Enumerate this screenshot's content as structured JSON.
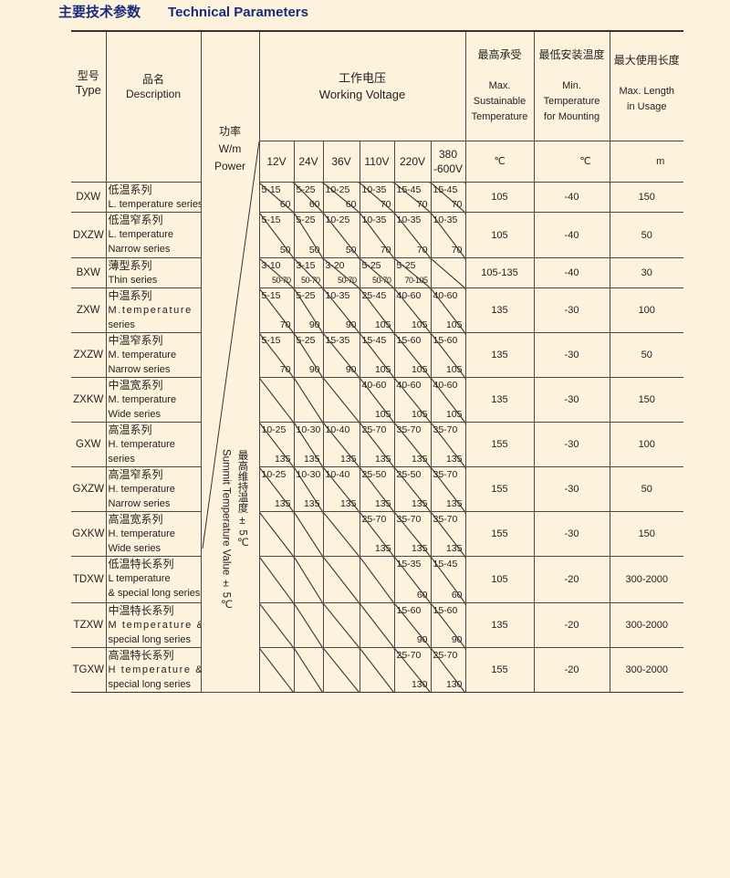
{
  "title": {
    "cn": "主要技术参数",
    "en": "Technical Parameters"
  },
  "header": {
    "type_cn": "型号",
    "type_en": "Type",
    "desc_cn": "品名",
    "desc_en": "Description",
    "power_cn": "功率",
    "power_unit": "W/m",
    "power_en": "Power",
    "voltage_cn": "工作电压",
    "voltage_en": "Working Voltage",
    "voltages": [
      "12V",
      "24V",
      "36V",
      "110V",
      "220V",
      "380\n-600V"
    ],
    "max_cn": "最高承受",
    "max_en": "Max.\nSustainable\nTemperature",
    "max_unit": "℃",
    "min_cn": "最低安装温度",
    "min_en": "Min.\nTemperature\nfor Mounting",
    "min_unit": "℃",
    "len_cn": "最大使用长度",
    "len_en": "Max. Length\nin Usage",
    "len_unit": "m"
  },
  "power_note": {
    "cn": "最高维持温度 ± 5℃",
    "en": "Summit Temperature Value ± 5℃"
  },
  "rows": [
    {
      "type": "DXW",
      "cn": "低温系列",
      "en": [
        "L. temperature series"
      ],
      "v": [
        [
          "5-15",
          "60"
        ],
        [
          "5-25",
          "60"
        ],
        [
          "10-25",
          "60"
        ],
        [
          "10-35",
          "70"
        ],
        [
          "15-45",
          "70"
        ],
        [
          "15-45",
          "70"
        ]
      ],
      "max": "105",
      "min": "-40",
      "len": "150"
    },
    {
      "type": "DXZW",
      "cn": "低温窄系列",
      "en": [
        "L. temperature",
        "Narrow series"
      ],
      "v": [
        [
          "5-15",
          "50"
        ],
        [
          "5-25",
          "50"
        ],
        [
          "10-25",
          "50"
        ],
        [
          "10-35",
          "70"
        ],
        [
          "10-35",
          "70"
        ],
        [
          "10-35",
          "70"
        ]
      ],
      "max": "105",
      "min": "-40",
      "len": "50"
    },
    {
      "type": "BXW",
      "cn": "薄型系列",
      "en": [
        "Thin series"
      ],
      "v": [
        [
          "3-10",
          "50-70"
        ],
        [
          "3-15",
          "50-70"
        ],
        [
          "3-20",
          "50-70"
        ],
        [
          "5-25",
          "50-70"
        ],
        [
          "5-25",
          "70-105"
        ],
        null
      ],
      "max": "105-135",
      "min": "-40",
      "len": "30"
    },
    {
      "type": "ZXW",
      "cn": "中温系列",
      "en": [
        "M.temperature",
        "series"
      ],
      "v": [
        [
          "5-15",
          "70"
        ],
        [
          "5-25",
          "90"
        ],
        [
          "10-35",
          "90"
        ],
        [
          "25-45",
          "105"
        ],
        [
          "40-60",
          "105"
        ],
        [
          "40-60",
          "105"
        ]
      ],
      "max": "135",
      "min": "-30",
      "len": "100"
    },
    {
      "type": "ZXZW",
      "cn": "中温窄系列",
      "en": [
        "M. temperature",
        "Narrow series"
      ],
      "v": [
        [
          "5-15",
          "70"
        ],
        [
          "5-25",
          "90"
        ],
        [
          "15-35",
          "90"
        ],
        [
          "15-45",
          "105"
        ],
        [
          "15-60",
          "105"
        ],
        [
          "15-60",
          "105"
        ]
      ],
      "max": "135",
      "min": "-30",
      "len": "50"
    },
    {
      "type": "ZXKW",
      "cn": "中温宽系列",
      "en": [
        "M. temperature",
        "Wide series"
      ],
      "v": [
        null,
        null,
        null,
        [
          "40-60",
          "105"
        ],
        [
          "40-60",
          "105"
        ],
        [
          "40-60",
          "105"
        ]
      ],
      "max": "135",
      "min": "-30",
      "len": "150"
    },
    {
      "type": "GXW",
      "cn": "高温系列",
      "en": [
        " H. temperature",
        "series"
      ],
      "v": [
        [
          "10-25",
          "135"
        ],
        [
          "10-30",
          "135"
        ],
        [
          "10-40",
          "135"
        ],
        [
          "25-70",
          "135"
        ],
        [
          "35-70",
          "135"
        ],
        [
          "35-70",
          "135"
        ]
      ],
      "max": "155",
      "min": "-30",
      "len": "100"
    },
    {
      "type": "GXZW",
      "cn": "高温窄系列",
      "en": [
        "H. temperature",
        "Narrow series"
      ],
      "v": [
        [
          "10-25",
          "135"
        ],
        [
          "10-30",
          "135"
        ],
        [
          "10-40",
          "135"
        ],
        [
          "25-50",
          "135"
        ],
        [
          "25-50",
          "135"
        ],
        [
          "35-70",
          "135"
        ]
      ],
      "max": "155",
      "min": "-30",
      "len": "50"
    },
    {
      "type": "GXKW",
      "cn": "高温宽系列",
      "en": [
        "H. temperature",
        "Wide series"
      ],
      "v": [
        null,
        null,
        null,
        [
          "25-70",
          "135"
        ],
        [
          "35-70",
          "135"
        ],
        [
          "35-70",
          "135"
        ]
      ],
      "max": "155",
      "min": "-30",
      "len": "150"
    },
    {
      "type": "TDXW",
      "cn": "低温特长系列",
      "en": [
        "L temperature",
        "& special long series"
      ],
      "v": [
        null,
        null,
        null,
        null,
        [
          "15-35",
          "60"
        ],
        [
          "15-45",
          "60"
        ]
      ],
      "max": "105",
      "min": "-20",
      "len": "300-2000"
    },
    {
      "type": "TZXW",
      "cn": "中温特长系列",
      "en": [
        "M temperature &",
        "special long series"
      ],
      "v": [
        null,
        null,
        null,
        null,
        [
          "15-60",
          "90"
        ],
        [
          "15-60",
          "90"
        ]
      ],
      "max": "135",
      "min": "-20",
      "len": "300-2000"
    },
    {
      "type": "TGXW",
      "cn": "高温特长系列",
      "en": [
        "H temperature &",
        "special long series"
      ],
      "v": [
        null,
        null,
        null,
        null,
        [
          "25-70",
          "130"
        ],
        [
          "25-70",
          "130"
        ]
      ],
      "max": "155",
      "min": "-20",
      "len": "300-2000"
    }
  ]
}
